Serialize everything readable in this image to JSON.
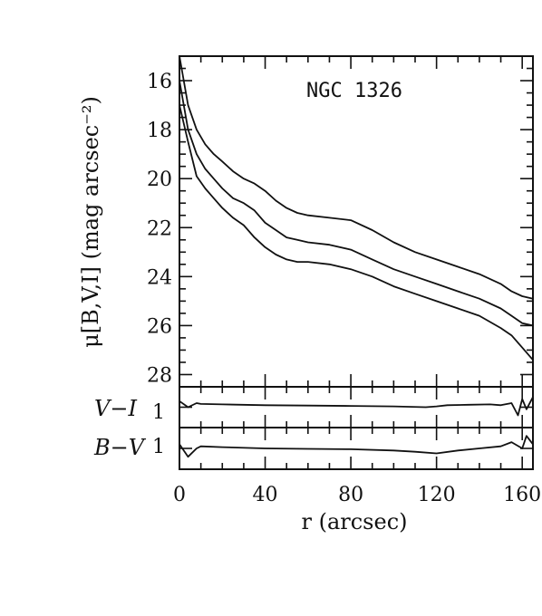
{
  "chart_data": [
    {
      "type": "line",
      "title": "NGC 1326",
      "xlabel": "r (arcsec)",
      "ylabel": "μ[B,V,I] (mag arcsec⁻²)",
      "xlim": [
        0,
        165
      ],
      "ylim": [
        28.5,
        15
      ],
      "inverted_y": true,
      "x_ticks": [
        "0",
        "40",
        "80",
        "120",
        "160"
      ],
      "y_ticks": [
        "16",
        "18",
        "20",
        "22",
        "24",
        "26",
        "28"
      ],
      "series": [
        {
          "x": [
            0,
            4,
            8,
            12,
            16,
            20,
            25,
            30,
            35,
            40,
            45,
            50,
            55,
            60,
            70,
            80,
            90,
            100,
            110,
            120,
            130,
            140,
            150,
            155,
            160,
            165
          ],
          "values": [
            15.0,
            17.0,
            18.0,
            18.6,
            19.0,
            19.3,
            19.7,
            20.0,
            20.2,
            20.5,
            20.9,
            21.2,
            21.4,
            21.5,
            21.6,
            21.7,
            22.1,
            22.6,
            23.0,
            23.3,
            23.6,
            23.9,
            24.3,
            24.6,
            24.8,
            24.9
          ]
        },
        {
          "x": [
            0,
            4,
            8,
            12,
            16,
            20,
            25,
            30,
            35,
            40,
            45,
            50,
            55,
            60,
            70,
            80,
            90,
            100,
            110,
            120,
            130,
            140,
            150,
            155,
            160,
            165
          ],
          "values": [
            16.0,
            18.0,
            19.0,
            19.6,
            20.0,
            20.4,
            20.8,
            21.0,
            21.3,
            21.8,
            22.1,
            22.4,
            22.5,
            22.6,
            22.7,
            22.9,
            23.3,
            23.7,
            24.0,
            24.3,
            24.6,
            24.9,
            25.3,
            25.6,
            25.9,
            26.0
          ]
        },
        {
          "x": [
            0,
            4,
            8,
            12,
            16,
            20,
            25,
            30,
            35,
            40,
            45,
            50,
            55,
            60,
            70,
            80,
            90,
            100,
            110,
            120,
            130,
            140,
            150,
            155,
            160,
            165
          ],
          "values": [
            17.0,
            18.5,
            19.9,
            20.4,
            20.8,
            21.2,
            21.6,
            21.9,
            22.4,
            22.8,
            23.1,
            23.3,
            23.4,
            23.4,
            23.5,
            23.7,
            24.0,
            24.4,
            24.7,
            25.0,
            25.3,
            25.6,
            26.1,
            26.4,
            26.9,
            27.4
          ]
        }
      ]
    },
    {
      "type": "line",
      "ylabel": "V−I",
      "y_ticks": [
        "1"
      ],
      "xlim": [
        0,
        165
      ],
      "ylim": [
        1.5,
        0.5
      ],
      "series": [
        {
          "x": [
            0,
            4,
            8,
            10,
            20,
            40,
            60,
            80,
            100,
            115,
            120,
            125,
            135,
            145,
            150,
            155,
            158,
            160,
            162,
            165
          ],
          "values": [
            0.85,
            1.0,
            0.9,
            0.92,
            0.93,
            0.95,
            0.96,
            0.97,
            0.98,
            1.0,
            0.98,
            0.95,
            0.94,
            0.93,
            0.95,
            0.9,
            1.2,
            0.8,
            1.05,
            0.75
          ]
        }
      ]
    },
    {
      "type": "line",
      "ylabel": "B−V",
      "y_ticks": [
        "1"
      ],
      "xlim": [
        0,
        165
      ],
      "ylim": [
        1.5,
        0.5
      ],
      "series": [
        {
          "x": [
            0,
            4,
            8,
            10,
            20,
            40,
            60,
            80,
            100,
            110,
            120,
            130,
            140,
            150,
            155,
            160,
            162,
            165
          ],
          "values": [
            0.9,
            1.2,
            1.0,
            0.95,
            0.97,
            1.0,
            1.01,
            1.02,
            1.05,
            1.08,
            1.12,
            1.05,
            1.0,
            0.95,
            0.85,
            1.0,
            0.7,
            0.9
          ]
        }
      ]
    }
  ]
}
